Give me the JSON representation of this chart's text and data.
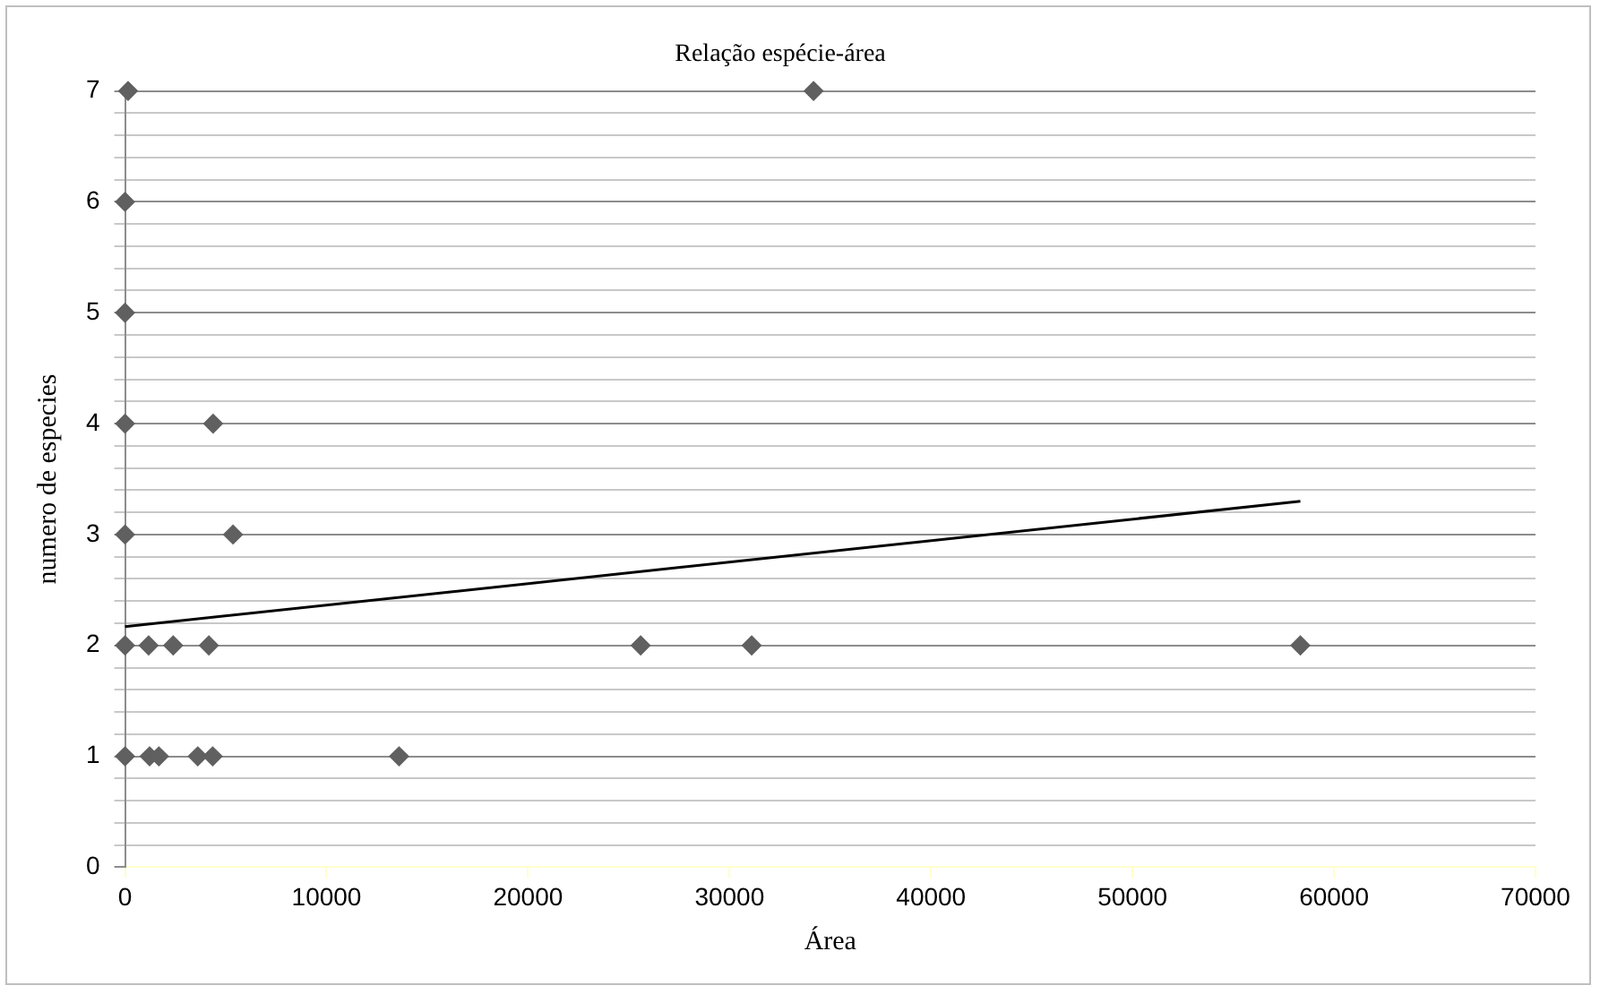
{
  "chart_data": {
    "type": "scatter",
    "title": "Relação espécie-área",
    "xlabel": "Área",
    "ylabel": "numero de especies",
    "series": [
      {
        "color": "#606060",
        "marker": "diamond",
        "x": [
          0,
          150,
          0,
          0,
          0,
          0,
          0,
          34170,
          4370,
          5360,
          1170,
          2390,
          4160,
          25590,
          31100,
          58330,
          1220,
          1680,
          3610,
          4350,
          13600
        ],
        "values": [
          1,
          7,
          6,
          5,
          4,
          3,
          2,
          7,
          4,
          3,
          2,
          2,
          2,
          2,
          2,
          2,
          1,
          1,
          1,
          1,
          1
        ]
      },
      {
        "type": "line",
        "color": "#000000",
        "marker": "none",
        "x": [
          0,
          58330
        ],
        "values": [
          2.17,
          3.3
        ]
      }
    ],
    "xlim": [
      0,
      70000
    ],
    "xticks": [
      0,
      10000,
      20000,
      30000,
      40000,
      50000,
      60000,
      70000
    ],
    "ylim": [
      0,
      7
    ],
    "yticks": [
      0,
      {
        "value": 0.2,
        "label": null
      },
      {
        "value": 0.4,
        "label": null
      },
      {
        "value": 0.6,
        "label": null
      },
      {
        "value": 0.8,
        "label": null
      },
      1,
      {
        "value": 1.2,
        "label": null
      },
      {
        "value": 1.4,
        "label": null
      },
      {
        "value": 1.6,
        "label": null
      },
      {
        "value": 1.8,
        "label": null
      },
      2,
      {
        "value": 2.2,
        "label": null
      },
      {
        "value": 2.4,
        "label": null
      },
      {
        "value": 2.6,
        "label": null
      },
      {
        "value": 2.8,
        "label": null
      },
      3,
      {
        "value": 3.2,
        "label": null
      },
      {
        "value": 3.4,
        "label": null
      },
      {
        "value": 3.6,
        "label": null
      },
      {
        "value": 3.8,
        "label": null
      },
      4,
      {
        "value": 4.2,
        "label": null
      },
      {
        "value": 4.4,
        "label": null
      },
      {
        "value": 4.6,
        "label": null
      },
      {
        "value": 4.8,
        "label": null
      },
      5,
      {
        "value": 5.2,
        "label": null
      },
      {
        "value": 5.4,
        "label": null
      },
      {
        "value": 5.6,
        "label": null
      },
      {
        "value": 5.8,
        "label": null
      },
      6,
      {
        "value": 6.2,
        "label": null
      },
      {
        "value": 6.4,
        "label": null
      },
      {
        "value": 6.6,
        "label": null
      },
      {
        "value": 6.8,
        "label": null
      },
      7
    ],
    "grid": "y",
    "legend": false
  }
}
